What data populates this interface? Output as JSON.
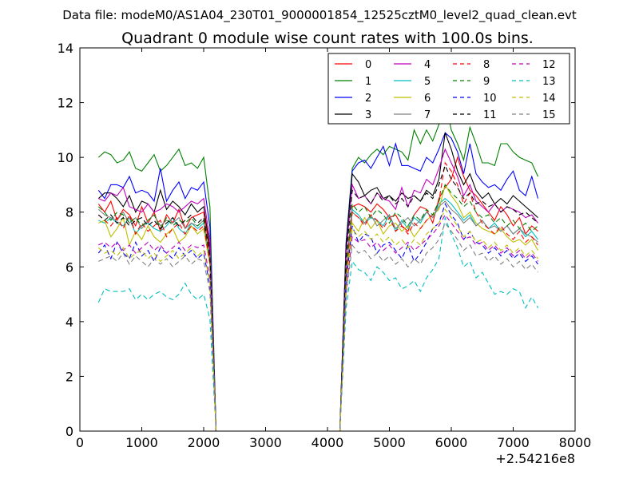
{
  "suptitle": "Data file: modeM0/AS1A04_230T01_9000001854_12525cztM0_level2_quad_clean.evt",
  "chart_data": {
    "type": "line",
    "title": "Quadrant 0 module wise count rates with 100.0s bins.",
    "xlabel": "",
    "ylabel": "",
    "x_offset_label": "+2.54216e8",
    "xlim": [
      0,
      8000
    ],
    "ylim": [
      0,
      14
    ],
    "xticks": [
      0,
      1000,
      2000,
      3000,
      4000,
      5000,
      6000,
      7000,
      8000
    ],
    "yticks": [
      0,
      2,
      4,
      6,
      8,
      10,
      12,
      14
    ],
    "grid": false,
    "legend_position": "top-right",
    "legend_columns": 4,
    "gaps": [
      [
        2250,
        4250
      ]
    ],
    "x": [
      300,
      400,
      500,
      600,
      700,
      800,
      900,
      1000,
      1100,
      1200,
      1300,
      1400,
      1500,
      1600,
      1700,
      1800,
      1900,
      2000,
      2100,
      2200,
      2300,
      2400,
      2500,
      2600,
      2700,
      2800,
      2900,
      3000,
      3100,
      3200,
      3300,
      3400,
      3500,
      3600,
      3700,
      3800,
      3900,
      4000,
      4100,
      4200,
      4300,
      4400,
      4500,
      4600,
      4700,
      4800,
      4900,
      5000,
      5100,
      5200,
      5300,
      5400,
      5500,
      5600,
      5700,
      5800,
      5900,
      6000,
      6100,
      6200,
      6300,
      6400,
      6500,
      6600,
      6700,
      6800,
      6900,
      7000,
      7100,
      7200,
      7300,
      7400
    ],
    "series": [
      {
        "name": "0",
        "color": "#ff0000",
        "dash": false,
        "active": [
          8.3,
          8.0,
          8.4,
          7.7,
          8.1,
          7.9,
          7.5,
          8.2,
          7.6,
          8.0,
          7.3,
          7.9,
          7.6,
          8.1,
          7.4,
          7.8,
          7.9,
          8.0
        ]
      },
      {
        "name": "1",
        "color": "#008000",
        "dash": false,
        "active": [
          10.0,
          10.2,
          10.1,
          9.8,
          9.9,
          10.2,
          9.6,
          9.5,
          9.8,
          10.1,
          9.5,
          9.7,
          10.0,
          10.3,
          9.7,
          9.8,
          9.6,
          10.0
        ]
      },
      {
        "name": "2",
        "color": "#0000ff",
        "dash": false,
        "active": [
          8.8,
          8.5,
          9.0,
          9.0,
          8.9,
          9.3,
          8.7,
          8.8,
          8.7,
          8.4,
          9.6,
          8.4,
          8.8,
          9.1,
          8.5,
          8.9,
          8.8,
          9.1
        ]
      },
      {
        "name": "3",
        "color": "#000000",
        "dash": false,
        "active": [
          8.5,
          8.7,
          8.7,
          8.5,
          8.2,
          8.6,
          8.0,
          8.4,
          8.3,
          8.0,
          8.8,
          8.1,
          8.4,
          8.2,
          7.9,
          8.3,
          8.0,
          8.2
        ]
      },
      {
        "name": "4",
        "color": "#bf00bf",
        "dash": false,
        "active": [
          8.5,
          8.4,
          8.7,
          8.6,
          8.9,
          8.2,
          8.1,
          8.0,
          8.3,
          8.0,
          8.1,
          8.3,
          8.2,
          8.0,
          8.2,
          8.4,
          8.3,
          8.5
        ]
      },
      {
        "name": "5",
        "color": "#00bfbf",
        "dash": false,
        "active": [
          7.7,
          7.6,
          7.8,
          7.6,
          7.5,
          7.8,
          7.2,
          7.5,
          7.6,
          7.4,
          7.3,
          7.5,
          7.8,
          7.4,
          7.2,
          7.6,
          7.4,
          7.6
        ]
      },
      {
        "name": "6",
        "color": "#bfbf00",
        "dash": false,
        "active": [
          7.6,
          7.7,
          7.1,
          7.4,
          7.8,
          6.8,
          7.3,
          7.0,
          7.5,
          7.1,
          6.9,
          7.2,
          7.4,
          6.9,
          7.1,
          7.5,
          7.2,
          7.4
        ]
      },
      {
        "name": "7",
        "color": "#808080",
        "dash": false,
        "active": [
          8.1,
          7.9,
          7.8,
          7.7,
          8.0,
          7.6,
          7.8,
          7.4,
          7.7,
          7.9,
          7.5,
          7.7,
          7.6,
          7.8,
          7.4,
          7.6,
          7.5,
          7.7
        ]
      },
      {
        "name": "8",
        "color": "#ff0000",
        "dash": true,
        "active": [
          7.9,
          7.7,
          7.5,
          7.8,
          7.4,
          7.9,
          7.2,
          7.6,
          7.3,
          7.5,
          7.7,
          7.1,
          7.4,
          7.6,
          7.2,
          7.5,
          7.3,
          7.5
        ]
      },
      {
        "name": "9",
        "color": "#008000",
        "dash": true,
        "active": [
          8.2,
          8.0,
          7.7,
          8.0,
          7.9,
          7.6,
          7.8,
          7.5,
          7.7,
          7.9,
          7.4,
          7.8,
          7.5,
          7.7,
          7.6,
          7.8,
          7.5,
          7.7
        ]
      },
      {
        "name": "10",
        "color": "#0000ff",
        "dash": true,
        "active": [
          6.5,
          6.8,
          6.3,
          6.9,
          6.5,
          6.3,
          6.9,
          6.4,
          6.6,
          6.2,
          6.7,
          6.5,
          6.3,
          6.7,
          6.4,
          6.6,
          6.3,
          6.5
        ]
      },
      {
        "name": "11",
        "color": "#000000",
        "dash": true,
        "active": [
          7.9,
          7.7,
          7.9,
          7.6,
          7.8,
          7.5,
          7.7,
          7.8,
          7.5,
          7.7,
          7.4,
          7.6,
          7.8,
          7.5,
          7.7,
          7.9,
          7.6,
          7.8
        ]
      },
      {
        "name": "12",
        "color": "#bf00bf",
        "dash": true,
        "active": [
          6.8,
          6.9,
          6.7,
          6.9,
          6.6,
          6.8,
          6.5,
          6.7,
          6.9,
          6.6,
          6.8,
          6.5,
          6.7,
          6.9,
          6.6,
          6.8,
          6.7,
          6.8
        ]
      },
      {
        "name": "13",
        "color": "#00bfbf",
        "dash": true,
        "active": [
          4.7,
          5.2,
          5.1,
          5.1,
          5.1,
          5.2,
          4.8,
          5.0,
          4.8,
          5.0,
          5.1,
          4.9,
          4.8,
          5.0,
          5.4,
          5.0,
          4.8,
          5.0
        ]
      },
      {
        "name": "14",
        "color": "#bfbf00",
        "dash": true,
        "active": [
          6.7,
          6.5,
          6.6,
          6.4,
          6.7,
          6.3,
          6.5,
          6.6,
          6.3,
          6.5,
          6.2,
          6.4,
          6.6,
          6.3,
          6.5,
          6.7,
          6.4,
          6.6
        ]
      },
      {
        "name": "15",
        "color": "#808080",
        "dash": true,
        "active": [
          6.2,
          6.3,
          6.4,
          6.2,
          6.5,
          6.1,
          6.4,
          6.2,
          6.0,
          6.3,
          6.1,
          6.3,
          6.0,
          6.2,
          6.4,
          6.1,
          6.3,
          6.2
        ]
      }
    ],
    "active2_note": "second active block values per series",
    "active2": [
      [
        8.2,
        8.3,
        8.2,
        8.0,
        8.3,
        8.1,
        7.8,
        7.9,
        7.5,
        7.3,
        7.9,
        8.2,
        8.1,
        7.6,
        8.5,
        8.9,
        9.2,
        10.0,
        9.3,
        8.8,
        8.6,
        8.3,
        8.0,
        7.7,
        8.2,
        7.9,
        7.5,
        7.8,
        7.2,
        7.5,
        7.3
      ],
      [
        9.6,
        10.0,
        9.8,
        10.1,
        10.3,
        10.1,
        10.4,
        10.3,
        10.2,
        9.9,
        11.0,
        10.5,
        11.0,
        10.6,
        11.2,
        12.1,
        11.0,
        10.5,
        9.9,
        11.1,
        10.5,
        9.8,
        9.8,
        9.7,
        10.5,
        10.5,
        10.2,
        10.0,
        9.9,
        9.8,
        9.3
      ],
      [
        9.5,
        9.8,
        9.9,
        9.6,
        10.0,
        10.4,
        9.7,
        10.5,
        9.7,
        9.7,
        9.6,
        9.5,
        10.0,
        9.8,
        10.3,
        10.9,
        10.7,
        10.2,
        9.4,
        10.5,
        9.4,
        9.1,
        8.9,
        9.0,
        8.8,
        9.2,
        9.5,
        8.8,
        8.6,
        9.3,
        8.5
      ],
      [
        9.4,
        9.1,
        8.6,
        8.8,
        8.9,
        8.5,
        8.6,
        8.4,
        8.7,
        8.5,
        8.6,
        8.4,
        8.8,
        8.6,
        9.2,
        10.9,
        10.3,
        9.5,
        9.0,
        9.4,
        8.8,
        8.5,
        8.7,
        8.3,
        8.5,
        8.3,
        8.6,
        8.4,
        8.2,
        8.0,
        7.8
      ],
      [
        9.0,
        8.5,
        8.6,
        8.3,
        8.7,
        8.5,
        8.4,
        8.1,
        8.9,
        8.2,
        8.8,
        8.7,
        9.2,
        9.0,
        9.6,
        10.3,
        9.8,
        9.3,
        8.6,
        9.0,
        8.4,
        8.2,
        8.0,
        8.3,
        8.0,
        8.2,
        8.1,
        8.0,
        7.8,
        7.9,
        7.6
      ],
      [
        8.1,
        7.9,
        7.6,
        7.8,
        7.7,
        7.5,
        7.9,
        7.3,
        7.7,
        7.4,
        7.8,
        7.6,
        8.0,
        7.8,
        8.3,
        8.5,
        8.3,
        8.0,
        7.7,
        7.9,
        7.5,
        7.7,
        7.4,
        7.6,
        7.3,
        7.5,
        7.2,
        7.4,
        7.1,
        7.3,
        7.0
      ],
      [
        7.6,
        7.3,
        7.8,
        7.4,
        7.7,
        7.2,
        7.5,
        7.6,
        7.3,
        7.5,
        7.1,
        7.4,
        7.7,
        7.9,
        8.1,
        9.0,
        8.6,
        8.3,
        7.8,
        8.0,
        7.6,
        7.4,
        7.3,
        7.2,
        7.4,
        7.1,
        6.9,
        7.0,
        6.8,
        7.0,
        6.6
      ],
      [
        8.0,
        7.8,
        7.6,
        7.9,
        7.5,
        7.7,
        7.9,
        7.4,
        7.6,
        7.8,
        7.5,
        7.7,
        8.0,
        7.8,
        8.2,
        8.4,
        8.1,
        7.9,
        7.6,
        7.8,
        7.5,
        7.7,
        7.4,
        7.5,
        7.3,
        7.5,
        7.2,
        7.4,
        7.2,
        7.1,
        6.9
      ],
      [
        8.0,
        7.8,
        7.5,
        7.9,
        7.7,
        7.4,
        7.8,
        7.3,
        7.5,
        7.2,
        7.6,
        7.4,
        7.7,
        7.9,
        8.4,
        9.8,
        9.5,
        9.0,
        8.3,
        8.7,
        8.0,
        7.6,
        7.4,
        7.2,
        7.5,
        7.2,
        7.0,
        7.3,
        6.9,
        7.1,
        6.8
      ],
      [
        8.3,
        8.0,
        8.2,
        7.8,
        8.1,
        7.9,
        7.6,
        8.0,
        7.8,
        7.5,
        7.9,
        7.7,
        8.1,
        7.9,
        8.4,
        9.0,
        8.7,
        8.5,
        8.2,
        8.4,
        8.0,
        7.8,
        7.9,
        7.6,
        7.8,
        7.5,
        7.7,
        7.4,
        7.6,
        7.3,
        7.5
      ],
      [
        7.5,
        6.9,
        7.2,
        7.1,
        6.5,
        6.8,
        6.9,
        6.6,
        6.3,
        6.8,
        6.2,
        6.5,
        6.9,
        7.4,
        7.6,
        8.3,
        7.9,
        7.6,
        7.0,
        7.3,
        6.9,
        6.8,
        6.5,
        6.7,
        6.4,
        6.6,
        6.3,
        6.5,
        6.2,
        6.4,
        6.1
      ],
      [
        8.8,
        8.5,
        8.6,
        8.3,
        8.7,
        8.4,
        8.6,
        8.3,
        8.5,
        8.2,
        8.6,
        8.4,
        8.7,
        8.5,
        9.0,
        9.7,
        9.2,
        8.9,
        8.5,
        8.7,
        8.3,
        8.4,
        8.2,
        8.3,
        8.0,
        8.2,
        8.1,
        7.9,
        8.0,
        7.8,
        7.6
      ],
      [
        7.1,
        6.9,
        7.0,
        6.7,
        6.9,
        6.6,
        6.8,
        6.5,
        6.7,
        6.9,
        6.6,
        6.8,
        7.0,
        7.2,
        7.5,
        7.9,
        7.6,
        7.3,
        7.0,
        7.1,
        6.8,
        6.9,
        6.6,
        6.8,
        6.5,
        6.7,
        6.4,
        6.6,
        6.3,
        6.5,
        6.2
      ],
      [
        6.2,
        5.9,
        5.8,
        5.5,
        6.0,
        5.8,
        5.5,
        5.6,
        5.2,
        5.3,
        5.5,
        5.1,
        5.6,
        5.9,
        6.3,
        7.8,
        7.2,
        6.7,
        6.0,
        6.2,
        5.6,
        5.8,
        5.4,
        5.0,
        5.1,
        5.0,
        5.2,
        5.1,
        4.5,
        4.9,
        4.5
      ],
      [
        7.4,
        7.1,
        7.3,
        7.0,
        7.2,
        6.9,
        7.1,
        6.8,
        7.0,
        6.7,
        7.0,
        6.8,
        7.2,
        7.4,
        7.6,
        8.1,
        7.8,
        7.5,
        7.1,
        7.3,
        6.9,
        7.0,
        6.7,
        6.9,
        6.6,
        6.8,
        6.5,
        6.7,
        6.4,
        6.6,
        6.3
      ],
      [
        6.8,
        6.5,
        6.6,
        6.3,
        6.5,
        6.2,
        6.4,
        6.1,
        6.3,
        6.0,
        6.3,
        6.1,
        6.5,
        6.7,
        7.0,
        7.6,
        7.3,
        7.0,
        6.6,
        6.8,
        6.4,
        6.5,
        6.2,
        6.4,
        6.1,
        6.3,
        6.0,
        6.2,
        5.9,
        6.1,
        5.8
      ]
    ]
  }
}
